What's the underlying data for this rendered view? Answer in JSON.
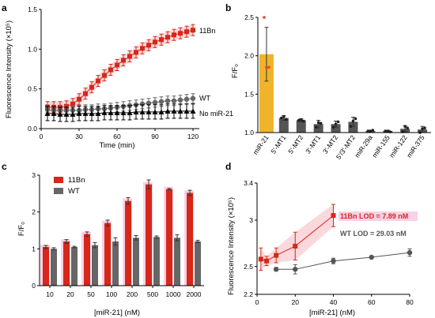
{
  "panel_labels": [
    "a",
    "b",
    "c",
    "d"
  ],
  "chart_data": [
    {
      "panel": "a",
      "type": "line",
      "xlabel": "Time (min)",
      "ylabel": "Fluorescence Intensity (×10⁵)",
      "xlim": [
        0,
        125
      ],
      "ylim": [
        0,
        1.5
      ],
      "xticks": [
        "0",
        "30",
        "60",
        "90",
        "120"
      ],
      "yticks": [
        "0.0",
        "0.5",
        "1.0",
        "1.5"
      ],
      "x": [
        5,
        10,
        15,
        20,
        25,
        30,
        35,
        40,
        45,
        50,
        55,
        60,
        65,
        70,
        75,
        80,
        85,
        90,
        95,
        100,
        105,
        110,
        115,
        120
      ],
      "series": [
        {
          "name": "11Bn",
          "color": "#d62718",
          "marker": "square",
          "values": [
            0.27,
            0.27,
            0.27,
            0.28,
            0.31,
            0.37,
            0.44,
            0.52,
            0.6,
            0.67,
            0.74,
            0.8,
            0.86,
            0.91,
            0.96,
            1.01,
            1.05,
            1.09,
            1.12,
            1.15,
            1.18,
            1.2,
            1.22,
            1.24
          ],
          "err": 0.07
        },
        {
          "name": "WT",
          "color": "#666666",
          "marker": "circle",
          "values": [
            0.24,
            0.23,
            0.23,
            0.23,
            0.23,
            0.23,
            0.24,
            0.24,
            0.25,
            0.25,
            0.26,
            0.27,
            0.28,
            0.29,
            0.3,
            0.31,
            0.32,
            0.33,
            0.34,
            0.35,
            0.35,
            0.36,
            0.37,
            0.38
          ],
          "err": 0.06
        },
        {
          "name": "No miR-21",
          "color": "#000000",
          "marker": "triangle",
          "values": [
            0.19,
            0.19,
            0.18,
            0.18,
            0.18,
            0.19,
            0.19,
            0.19,
            0.19,
            0.2,
            0.2,
            0.2,
            0.2,
            0.2,
            0.21,
            0.21,
            0.21,
            0.21,
            0.21,
            0.22,
            0.22,
            0.22,
            0.22,
            0.22
          ],
          "err": 0.09
        }
      ]
    },
    {
      "panel": "b",
      "type": "bar",
      "ylabel": "F/F₀",
      "ylim": [
        1.0,
        2.5
      ],
      "yticks": [
        "1.0",
        "1.5",
        "2.0",
        "2.5"
      ],
      "categories": [
        "miR-21",
        "5'-MT1",
        "5'-MT2",
        "3'-MT1",
        "3'-MT2",
        "5'/3'-MT2",
        "miR-29a",
        "miR-155",
        "miR-122",
        "miR-375"
      ],
      "values": [
        2.02,
        1.19,
        1.16,
        1.11,
        1.11,
        1.14,
        1.02,
        1.02,
        1.05,
        1.04
      ],
      "errors": [
        0.35,
        0.03,
        0.02,
        0.05,
        0.04,
        0.06,
        0.01,
        0.01,
        0.04,
        0.04
      ],
      "colors": [
        "#f0b42a",
        "#555555",
        "#555555",
        "#555555",
        "#555555",
        "#555555",
        "#555555",
        "#555555",
        "#555555",
        "#555555"
      ],
      "points": [
        [
          2.5,
          1.85,
          1.85
        ],
        [
          1.19,
          1.21,
          1.17
        ],
        [
          1.16,
          1.17,
          1.15
        ],
        [
          1.07,
          1.13,
          1.12
        ],
        [
          1.07,
          1.11,
          1.14
        ],
        [
          1.08,
          1.15,
          1.18
        ],
        [
          1.02,
          1.02,
          1.03
        ],
        [
          1.02,
          1.02,
          1.01
        ],
        [
          1.01,
          1.08,
          1.06
        ],
        [
          1.0,
          1.05,
          1.06
        ]
      ]
    },
    {
      "panel": "c",
      "type": "bar",
      "xlabel": "[miR-21] (nM)",
      "ylabel": "F/F₀",
      "ylim": [
        0,
        3
      ],
      "yticks": [
        "0",
        "1",
        "2",
        "3"
      ],
      "categories": [
        "10",
        "20",
        "50",
        "100",
        "200",
        "500",
        "1000",
        "2000"
      ],
      "series": [
        {
          "name": "11Bn",
          "color": "#d62718",
          "values": [
            1.05,
            1.2,
            1.4,
            1.7,
            2.3,
            2.75,
            2.62,
            2.52
          ],
          "err": [
            0.04,
            0.05,
            0.06,
            0.08,
            0.09,
            0.12,
            0.02,
            0.07
          ]
        },
        {
          "name": "WT",
          "color": "#666666",
          "values": [
            1.0,
            1.05,
            1.1,
            1.2,
            1.3,
            1.32,
            1.3,
            1.2
          ],
          "err": [
            0.03,
            0.02,
            0.07,
            0.1,
            0.06,
            0.03,
            0.08,
            0.03
          ]
        }
      ]
    },
    {
      "panel": "d",
      "type": "scatter",
      "xlabel": "[miR-21] (nM)",
      "ylabel": "Fluorescence Intensity (×10⁵)",
      "xlim": [
        0,
        80
      ],
      "ylim": [
        2.2,
        3.4
      ],
      "xticks": [
        "0",
        "20",
        "40",
        "60",
        "80"
      ],
      "yticks": [
        "2.2",
        "2.5",
        "3",
        "3.4"
      ],
      "series": [
        {
          "name": "11Bn LOD = 7.89 nM",
          "color": "#d62718",
          "marker": "square",
          "x": [
            2,
            5,
            10,
            20,
            40
          ],
          "y": [
            2.58,
            2.56,
            2.62,
            2.72,
            3.05
          ],
          "err": [
            0.12,
            0.05,
            0.08,
            0.15,
            0.12
          ]
        },
        {
          "name": "WT LOD = 29.03 nM",
          "color": "#555555",
          "marker": "circle",
          "x": [
            10,
            20,
            40,
            60,
            80
          ],
          "y": [
            2.47,
            2.47,
            2.56,
            2.6,
            2.65
          ],
          "err": [
            0.02,
            0.05,
            0.03,
            0.01,
            0.04
          ]
        }
      ]
    }
  ]
}
